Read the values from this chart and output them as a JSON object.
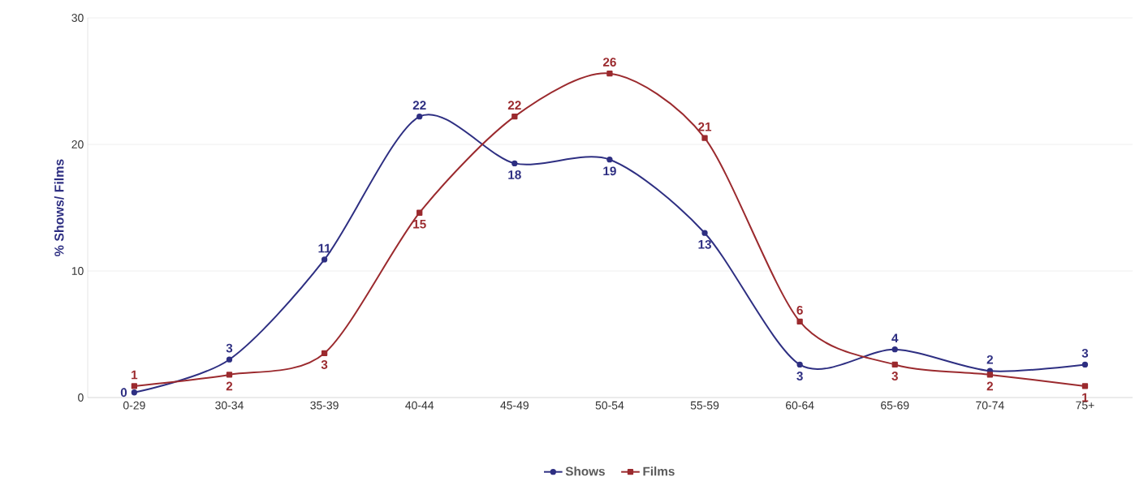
{
  "chart_data": {
    "type": "line",
    "ylabel": "% Shows/ Films",
    "categories": [
      "0-29",
      "30-34",
      "35-39",
      "40-44",
      "45-49",
      "50-54",
      "55-59",
      "60-64",
      "65-69",
      "70-74",
      "75+"
    ],
    "series": [
      {
        "name": "Shows",
        "color": "#2e2f82",
        "marker": "circle",
        "values": [
          0.4,
          3.0,
          10.9,
          22.2,
          18.5,
          18.8,
          13.0,
          2.6,
          3.8,
          2.1,
          2.6
        ],
        "value_labels": [
          "0",
          "3",
          "11",
          "22",
          "18",
          "19",
          "13",
          "3",
          "4",
          "2",
          "3"
        ]
      },
      {
        "name": "Films",
        "color": "#9b2a2e",
        "marker": "square",
        "values": [
          0.9,
          1.8,
          3.5,
          14.6,
          22.2,
          25.6,
          20.5,
          6.0,
          2.6,
          1.8,
          0.9
        ],
        "value_labels": [
          "1",
          "2",
          "3",
          "15",
          "22",
          "26",
          "21",
          "6",
          "3",
          "2",
          "1"
        ]
      }
    ],
    "ylim": [
      0,
      30
    ],
    "yticks": [
      0,
      10,
      20,
      30
    ],
    "grid": "y",
    "legend": "bottom",
    "line_style": "solid"
  }
}
